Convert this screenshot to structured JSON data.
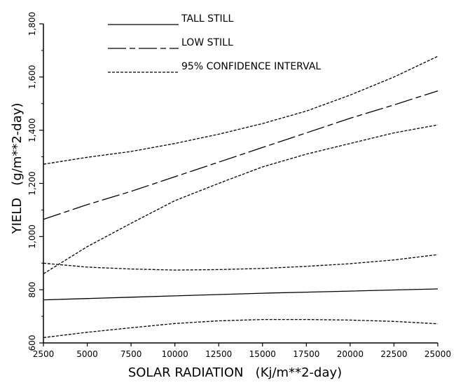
{
  "chart_data": {
    "type": "line",
    "xlabel": "SOLAR RADIATION   (Kj/m**2-day)",
    "ylabel": "YIELD   (g/m**2-day)",
    "xlim": [
      2500,
      25000
    ],
    "ylim": [
      600,
      1800
    ],
    "x_ticks": [
      2500,
      5000,
      7500,
      10000,
      12500,
      15000,
      17500,
      20000,
      22500,
      25000
    ],
    "x_tick_labels": [
      "2500",
      "5000",
      "7500",
      "10000",
      "12500",
      "15000",
      "17500",
      "20000",
      "22500",
      "25000"
    ],
    "y_ticks": [
      600,
      800,
      1000,
      1200,
      1400,
      1600,
      1800
    ],
    "y_tick_labels": [
      "600",
      "800",
      "1,000",
      "1,200",
      "1,400",
      "1,600",
      "1,800"
    ],
    "grid": false,
    "legend_position": "top",
    "series": [
      {
        "name": "TALL STILL",
        "style": "solid",
        "x": [
          2500,
          5000,
          7500,
          10000,
          12500,
          15000,
          17500,
          20000,
          22500,
          25000
        ],
        "y": [
          762,
          767,
          772,
          777,
          782,
          787,
          791,
          795,
          799,
          803
        ]
      },
      {
        "name": "LOW STILL",
        "style": "longdash",
        "x": [
          2500,
          5000,
          7500,
          10000,
          12500,
          15000,
          17500,
          20000,
          22500,
          25000
        ],
        "y": [
          1065,
          1120,
          1170,
          1225,
          1280,
          1335,
          1390,
          1445,
          1495,
          1548
        ]
      },
      {
        "name": "95% CONFIDENCE INTERVAL",
        "style": "shortdash",
        "x": [
          2500,
          5000,
          7500,
          10000,
          12500,
          15000,
          17500,
          20000,
          22500,
          25000
        ],
        "y": [
          1272,
          1298,
          1320,
          1350,
          1385,
          1425,
          1472,
          1532,
          1600,
          1678
        ]
      },
      {
        "name": "95% CONFIDENCE INTERVAL",
        "style": "shortdash",
        "x": [
          2500,
          5000,
          7500,
          10000,
          12500,
          15000,
          17500,
          20000,
          22500,
          25000
        ],
        "y": [
          860,
          962,
          1050,
          1135,
          1200,
          1262,
          1310,
          1350,
          1390,
          1420
        ]
      },
      {
        "name": "95% CONFIDENCE INTERVAL",
        "style": "shortdash",
        "x": [
          2500,
          5000,
          7500,
          10000,
          12500,
          15000,
          17500,
          20000,
          22500,
          25000
        ],
        "y": [
          900,
          885,
          878,
          874,
          876,
          880,
          888,
          898,
          912,
          932
        ]
      },
      {
        "name": "95% CONFIDENCE INTERVAL",
        "style": "shortdash",
        "x": [
          2500,
          5000,
          7500,
          10000,
          12500,
          15000,
          17500,
          20000,
          22500,
          25000
        ],
        "y": [
          620,
          640,
          657,
          673,
          683,
          688,
          688,
          686,
          681,
          672
        ]
      }
    ],
    "legend": [
      {
        "label": "TALL STILL",
        "style": "solid"
      },
      {
        "label": "LOW STILL",
        "style": "longdash"
      },
      {
        "label": "95% CONFIDENCE INTERVAL",
        "style": "shortdash"
      }
    ]
  }
}
